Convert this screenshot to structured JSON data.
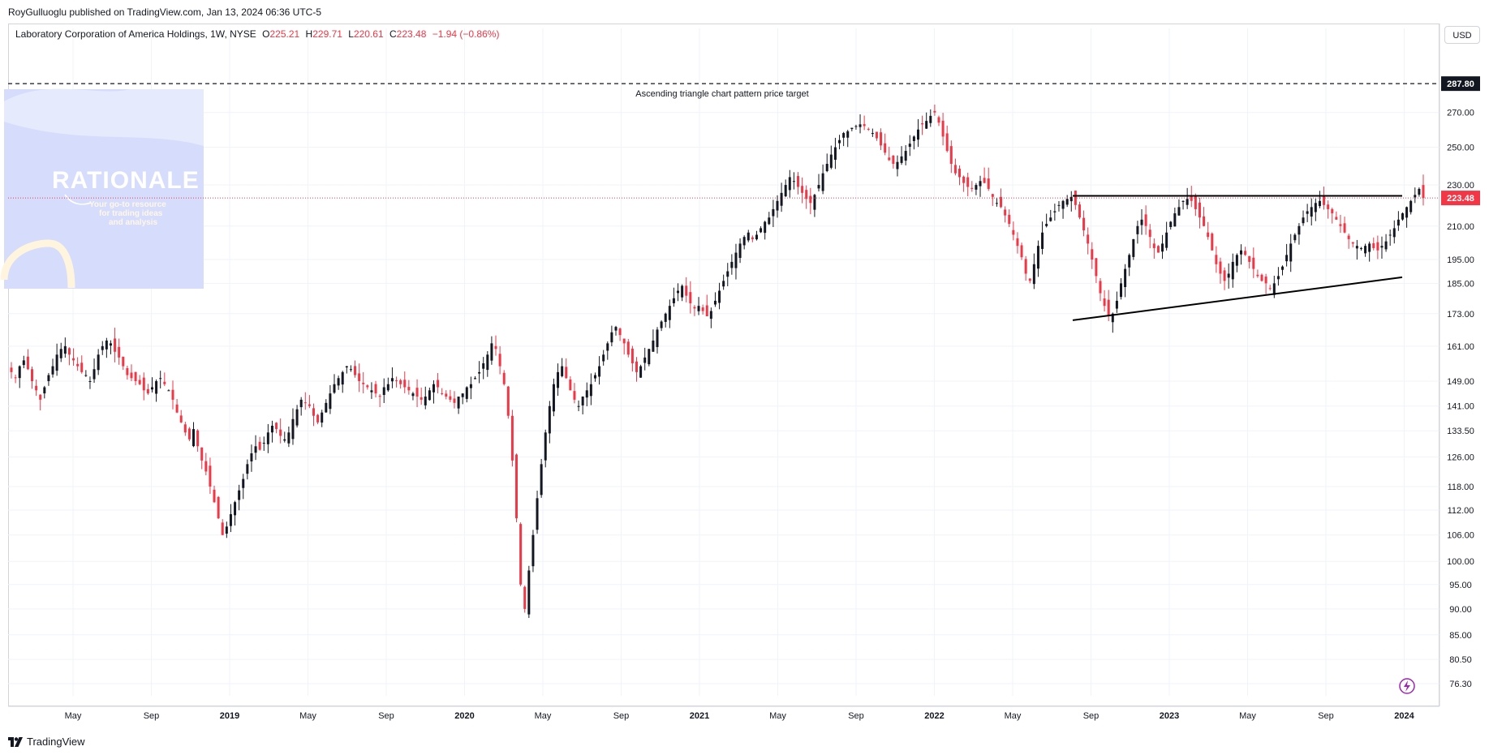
{
  "header": {
    "publisher_line": "RoyGulluoglu published on TradingView.com, Jan 13, 2024 06:36 UTC-5"
  },
  "legend": {
    "symbol": "Laboratory Corporation of America Holdings, 1W, NYSE",
    "open_label": "O",
    "open": "225.21",
    "high_label": "H",
    "high": "229.71",
    "low_label": "L",
    "low": "220.61",
    "close_label": "C",
    "close": "223.48",
    "change": "−1.94 (−0.86%)"
  },
  "currency_button": "USD",
  "footer": {
    "brand": "TradingView"
  },
  "watermark": {
    "title": "RATIONALE",
    "line1": "Your go-to resource",
    "line2": "for trading ideas",
    "line3": "and analysis"
  },
  "colors": {
    "up": "#131722",
    "down": "#f23645",
    "watermark_bg": "#d6dcfb",
    "price_label_bg": "#f23645",
    "target_label_bg": "#131722",
    "grid": "#f0f3fa"
  },
  "icons": {
    "footer_logo": "tradingview-logo-icon",
    "flash": "flash-icon"
  },
  "chart_data": {
    "type": "candlestick",
    "timeframe": "1W",
    "y_scale": "log",
    "ylim": [
      74,
      300
    ],
    "y_ticks": [
      "270.00",
      "250.00",
      "230.00",
      "210.00",
      "195.00",
      "185.00",
      "173.00",
      "161.00",
      "149.00",
      "141.00",
      "133.50",
      "126.00",
      "118.00",
      "112.00",
      "106.00",
      "100.00",
      "95.00",
      "90.00",
      "85.00",
      "80.50",
      "76.30"
    ],
    "x_ticks": [
      "May",
      "Sep",
      "2019",
      "May",
      "Sep",
      "2020",
      "May",
      "Sep",
      "2021",
      "May",
      "Sep",
      "2022",
      "May",
      "Sep",
      "2023",
      "May",
      "Sep",
      "2024"
    ],
    "x_tick_bold": [
      false,
      false,
      true,
      false,
      false,
      true,
      false,
      false,
      true,
      false,
      false,
      true,
      false,
      false,
      true,
      false,
      false,
      true
    ],
    "current_price": 223.48,
    "current_price_label": "223.48",
    "target_price": 287.8,
    "target_price_label": "287.80",
    "annotation": "Ascending triangle chart pattern price target",
    "trendlines": [
      {
        "name": "resistance",
        "start": [
          "2022-08-15",
          224.5
        ],
        "end": [
          "2024-01-15",
          224.5
        ]
      },
      {
        "name": "support",
        "start": [
          "2022-08-15",
          170.5
        ],
        "end": [
          "2024-01-15",
          187.5
        ]
      }
    ],
    "weekly_closes": [
      152,
      150,
      154,
      156,
      153,
      149,
      146,
      143,
      147,
      151,
      154,
      158,
      160,
      161,
      158,
      156,
      154,
      152,
      151,
      149,
      153,
      158,
      161,
      163,
      162,
      159,
      157,
      154,
      151,
      150,
      149,
      148,
      146,
      145,
      147,
      149,
      150,
      148,
      146,
      143,
      139,
      136,
      133,
      131,
      134,
      129,
      125,
      122,
      118,
      114,
      110,
      106,
      108,
      111,
      114,
      117,
      120,
      124,
      127,
      129,
      128,
      130,
      133,
      135,
      134,
      132,
      131,
      133,
      137,
      140,
      143,
      142,
      141,
      138,
      136,
      139,
      142,
      145,
      148,
      150,
      152,
      154,
      153,
      151,
      149,
      148,
      147,
      146,
      145,
      144,
      147,
      148,
      150,
      149,
      148,
      147,
      146,
      145,
      144,
      143,
      144,
      146,
      148,
      147,
      145,
      144,
      143,
      142,
      144,
      145,
      147,
      148,
      150,
      152,
      155,
      158,
      162,
      160,
      154,
      148,
      138,
      125,
      110,
      95,
      90,
      98,
      106,
      115,
      124,
      133,
      141,
      148,
      152,
      154,
      150,
      146,
      143,
      141,
      144,
      146,
      148,
      151,
      154,
      158,
      162,
      166,
      168,
      165,
      162,
      158,
      155,
      152,
      154,
      157,
      160,
      163,
      167,
      170,
      173,
      176,
      179,
      182,
      184,
      180,
      177,
      175,
      176,
      174,
      172,
      174,
      178,
      182,
      186,
      190,
      194,
      198,
      202,
      205,
      207,
      204,
      206,
      209,
      212,
      214,
      218,
      222,
      226,
      230,
      234,
      232,
      229,
      226,
      223,
      221,
      225,
      230,
      236,
      241,
      246,
      250,
      254,
      258,
      259,
      261,
      262,
      263,
      262,
      260,
      258,
      255,
      251,
      247,
      243,
      241,
      242,
      245,
      248,
      252,
      256,
      260,
      263,
      265,
      268,
      270,
      264,
      256,
      248,
      241,
      236,
      234,
      231,
      229,
      228,
      230,
      232,
      231,
      228,
      224,
      221,
      219,
      215,
      211,
      206,
      201,
      196,
      189,
      186,
      193,
      201,
      207,
      211,
      214,
      217,
      220,
      222,
      223,
      224,
      220,
      214,
      208,
      202,
      195,
      188,
      181,
      176,
      172,
      173,
      178,
      185,
      191,
      197,
      204,
      210,
      213,
      210,
      205,
      200,
      198,
      202,
      207,
      212,
      216,
      219,
      222,
      223,
      222,
      218,
      214,
      210,
      205,
      199,
      193,
      189,
      186,
      189,
      194,
      197,
      199,
      197,
      194,
      191,
      188,
      186,
      185,
      183,
      185,
      188,
      192,
      197,
      202,
      206,
      210,
      214,
      217,
      219,
      221,
      222,
      220,
      218,
      216,
      213,
      210,
      207,
      204,
      202,
      201,
      200,
      201,
      202,
      200,
      199,
      201,
      203,
      206,
      209,
      213,
      216,
      219,
      222,
      225,
      228,
      223.48
    ]
  }
}
